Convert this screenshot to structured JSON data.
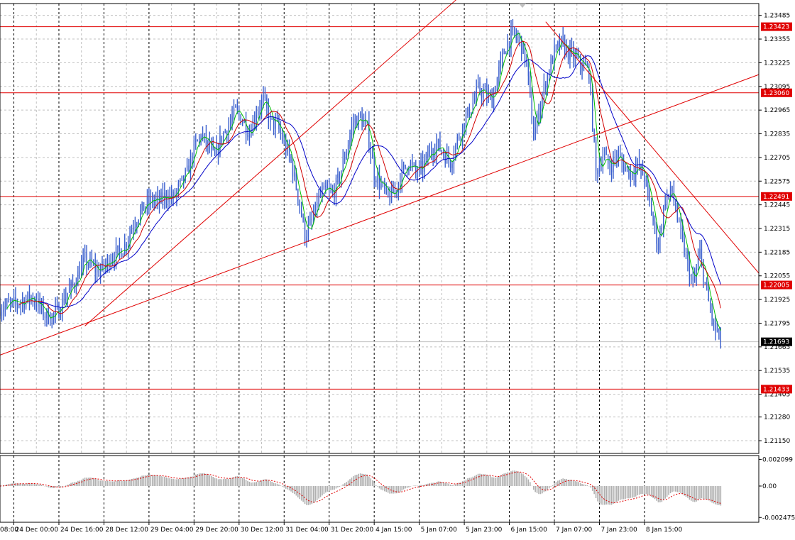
{
  "colors": {
    "background": "#ffffff",
    "grid": "#c0c0c0",
    "candle": "#3a5fcd",
    "hline": "#e00000",
    "trend": "#e00000",
    "ma_fast": "#00c000",
    "ma_mid": "#d00000",
    "ma_slow": "#0000c8",
    "osc_hist": "#b0b0b0",
    "osc_signal": "#e00000",
    "label_bg_red": "#e00000",
    "label_bg_current": "#000000"
  },
  "chart_data": [
    {
      "type": "candlestick",
      "name": "price",
      "ylim": [
        1.2108,
        1.2355
      ],
      "xlim": [
        -8,
        430
      ],
      "ticks_y": [
        "1.23485",
        "1.23355",
        "1.23225",
        "1.23095",
        "1.22965",
        "1.22835",
        "1.22705",
        "1.22575",
        "1.22445",
        "1.22315",
        "1.22185",
        "1.22055",
        "1.21925",
        "1.21795",
        "1.21665",
        "1.21535",
        "1.21405",
        "1.21280",
        "1.21150"
      ],
      "time_ticks": [
        {
          "pos": 0,
          "label": "24 Dec 00:00"
        },
        {
          "pos": 26,
          "label": "24 Dec 16:00"
        },
        {
          "pos": 52,
          "label": "28 Dec 12:00"
        },
        {
          "pos": 78,
          "label": "29 Dec 04:00"
        },
        {
          "pos": 104,
          "label": "29 Dec 20:00"
        },
        {
          "pos": 130,
          "label": "30 Dec 12:00"
        },
        {
          "pos": 156,
          "label": "31 Dec 04:00"
        },
        {
          "pos": 182,
          "label": "31 Dec 20:00"
        },
        {
          "pos": 208,
          "label": "4 Jan 15:00"
        },
        {
          "pos": 234,
          "label": "5 Jan 07:00"
        },
        {
          "pos": 260,
          "label": "5 Jan 23:00"
        },
        {
          "pos": 286,
          "label": "6 Jan 15:00"
        },
        {
          "pos": 312,
          "label": "7 Jan 07:00"
        },
        {
          "pos": 338,
          "label": "7 Jan 23:00"
        },
        {
          "pos": 364,
          "label": "8 Jan 15:00"
        }
      ],
      "left_partial_label": "08:00",
      "horizontal_levels": [
        {
          "value": 1.23423,
          "label": "1.23423"
        },
        {
          "value": 1.2306,
          "label": "1.23060"
        },
        {
          "value": 1.22491,
          "label": "1.22491"
        },
        {
          "value": 1.22005,
          "label": "1.22005"
        },
        {
          "value": 1.21433,
          "label": "1.21433"
        }
      ],
      "current_price": {
        "value": 1.21693,
        "label": "1.21693"
      },
      "trendlines": [
        {
          "x1": -8,
          "y1": 1.2162,
          "x2": 430,
          "y2": 1.2316
        },
        {
          "x1": 41,
          "y1": 1.2178,
          "x2": 260,
          "y2": 1.2361
        },
        {
          "x1": 307,
          "y1": 1.2345,
          "x2": 430,
          "y2": 1.2207
        }
      ],
      "anchors": [
        [
          -8,
          1.2188
        ],
        [
          0,
          1.219
        ],
        [
          6,
          1.2192
        ],
        [
          10,
          1.2194
        ],
        [
          14,
          1.219
        ],
        [
          18,
          1.2184
        ],
        [
          22,
          1.2183
        ],
        [
          26,
          1.2187
        ],
        [
          30,
          1.2195
        ],
        [
          34,
          1.22
        ],
        [
          38,
          1.2208
        ],
        [
          41,
          1.2214
        ],
        [
          44,
          1.2212
        ],
        [
          48,
          1.2208
        ],
        [
          52,
          1.221
        ],
        [
          56,
          1.2216
        ],
        [
          60,
          1.2218
        ],
        [
          64,
          1.2222
        ],
        [
          68,
          1.2232
        ],
        [
          72,
          1.2239
        ],
        [
          76,
          1.2244
        ],
        [
          80,
          1.2247
        ],
        [
          84,
          1.2246
        ],
        [
          88,
          1.225
        ],
        [
          92,
          1.2248
        ],
        [
          96,
          1.2255
        ],
        [
          100,
          1.2262
        ],
        [
          104,
          1.2275
        ],
        [
          108,
          1.2283
        ],
        [
          112,
          1.2277
        ],
        [
          116,
          1.227
        ],
        [
          120,
          1.2282
        ],
        [
          124,
          1.2288
        ],
        [
          128,
          1.2296
        ],
        [
          132,
          1.2291
        ],
        [
          136,
          1.2284
        ],
        [
          140,
          1.2296
        ],
        [
          144,
          1.2302
        ],
        [
          148,
          1.229
        ],
        [
          152,
          1.2288
        ],
        [
          156,
          1.2278
        ],
        [
          160,
          1.2268
        ],
        [
          164,
          1.225
        ],
        [
          168,
          1.2228
        ],
        [
          172,
          1.2235
        ],
        [
          176,
          1.2248
        ],
        [
          180,
          1.2252
        ],
        [
          184,
          1.225
        ],
        [
          188,
          1.226
        ],
        [
          192,
          1.2275
        ],
        [
          196,
          1.229
        ],
        [
          200,
          1.2292
        ],
        [
          204,
          1.2286
        ],
        [
          208,
          1.2262
        ],
        [
          212,
          1.2255
        ],
        [
          216,
          1.2248
        ],
        [
          220,
          1.2252
        ],
        [
          224,
          1.2262
        ],
        [
          228,
          1.2268
        ],
        [
          232,
          1.2262
        ],
        [
          236,
          1.2265
        ],
        [
          240,
          1.2273
        ],
        [
          244,
          1.2278
        ],
        [
          248,
          1.2273
        ],
        [
          252,
          1.2268
        ],
        [
          256,
          1.228
        ],
        [
          260,
          1.229
        ],
        [
          264,
          1.2298
        ],
        [
          268,
          1.2308
        ],
        [
          272,
          1.2305
        ],
        [
          276,
          1.2302
        ],
        [
          280,
          1.2318
        ],
        [
          284,
          1.2332
        ],
        [
          288,
          1.2338
        ],
        [
          292,
          1.2335
        ],
        [
          296,
          1.2322
        ],
        [
          300,
          1.2282
        ],
        [
          304,
          1.23
        ],
        [
          308,
          1.2316
        ],
        [
          312,
          1.2328
        ],
        [
          316,
          1.2333
        ],
        [
          320,
          1.2328
        ],
        [
          324,
          1.2325
        ],
        [
          328,
          1.2321
        ],
        [
          332,
          1.2318
        ],
        [
          336,
          1.2262
        ],
        [
          340,
          1.2272
        ],
        [
          344,
          1.2265
        ],
        [
          348,
          1.2272
        ],
        [
          352,
          1.2266
        ],
        [
          356,
          1.2262
        ],
        [
          360,
          1.2266
        ],
        [
          364,
          1.226
        ],
        [
          368,
          1.224
        ],
        [
          372,
          1.2222
        ],
        [
          376,
          1.2248
        ],
        [
          380,
          1.2252
        ],
        [
          384,
          1.2232
        ],
        [
          388,
          1.2215
        ],
        [
          392,
          1.22
        ],
        [
          396,
          1.2218
        ],
        [
          400,
          1.2195
        ],
        [
          404,
          1.2178
        ],
        [
          408,
          1.217
        ]
      ],
      "ma_periods": [
        5,
        12,
        24
      ]
    },
    {
      "type": "histogram",
      "name": "oscillator",
      "ylim": [
        -0.00285,
        0.0024
      ],
      "ticks_y": [
        "0.002099",
        "0.00",
        "-0.002475"
      ],
      "tick_values": [
        0.002099,
        0,
        -0.002475
      ]
    }
  ]
}
